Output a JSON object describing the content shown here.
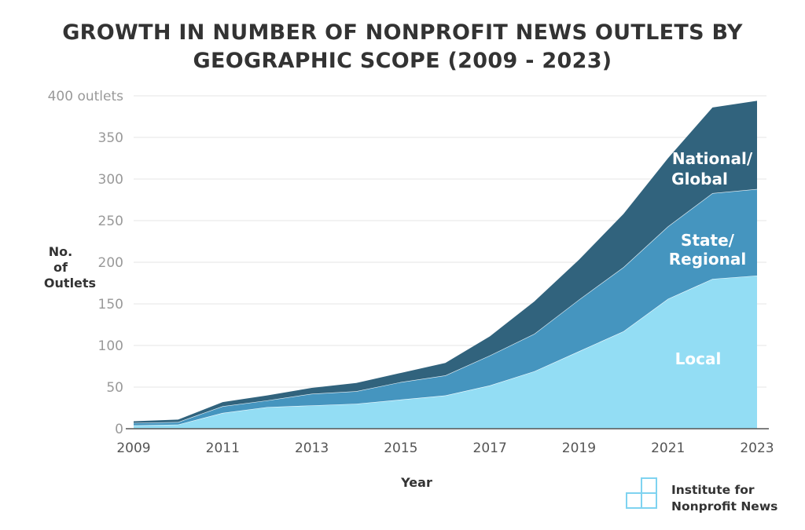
{
  "chart_data": {
    "type": "area",
    "stacked": true,
    "title_lines": [
      "GROWTH IN NUMBER OF NONPROFIT NEWS OUTLETS BY",
      "GEOGRAPHIC SCOPE (2009 - 2023)"
    ],
    "xlabel": "Year",
    "ylabel_lines": [
      "No.",
      "of",
      "Outlets"
    ],
    "ylim": [
      0,
      400
    ],
    "yticks": [
      0,
      50,
      100,
      150,
      200,
      250,
      300,
      350,
      400
    ],
    "ytick_labels": [
      "0",
      "50",
      "100",
      "150",
      "200",
      "250",
      "300",
      "350",
      "400 outlets"
    ],
    "x": [
      2009,
      2010,
      2011,
      2012,
      2013,
      2014,
      2015,
      2016,
      2017,
      2018,
      2019,
      2020,
      2021,
      2022,
      2023
    ],
    "xtick_labels": [
      "2009",
      "2011",
      "2013",
      "2015",
      "2017",
      "2019",
      "2021",
      "2023"
    ],
    "grid": true,
    "series": [
      {
        "name": "Local",
        "label_lines": [
          "Local"
        ],
        "color": "#93DDF4",
        "values": [
          4,
          5,
          19,
          26,
          28,
          30,
          35,
          40,
          52,
          69,
          93,
          117,
          156,
          180,
          184
        ]
      },
      {
        "name": "State/Regional",
        "label_lines": [
          "State/",
          "Regional"
        ],
        "color": "#4595BF",
        "values": [
          3,
          3,
          8,
          8,
          14,
          15,
          21,
          24,
          36,
          45,
          62,
          77,
          87,
          103,
          104
        ]
      },
      {
        "name": "National/Global",
        "label_lines": [
          "National/",
          "Global"
        ],
        "color": "#31637D",
        "values": [
          2,
          3,
          5,
          6,
          7,
          10,
          11,
          15,
          23,
          39,
          48,
          64,
          82,
          103,
          106
        ]
      }
    ]
  },
  "branding": {
    "logo_lines": [
      "Institute for",
      "Nonprofit News"
    ],
    "logo_color": "#7FD3F0"
  }
}
